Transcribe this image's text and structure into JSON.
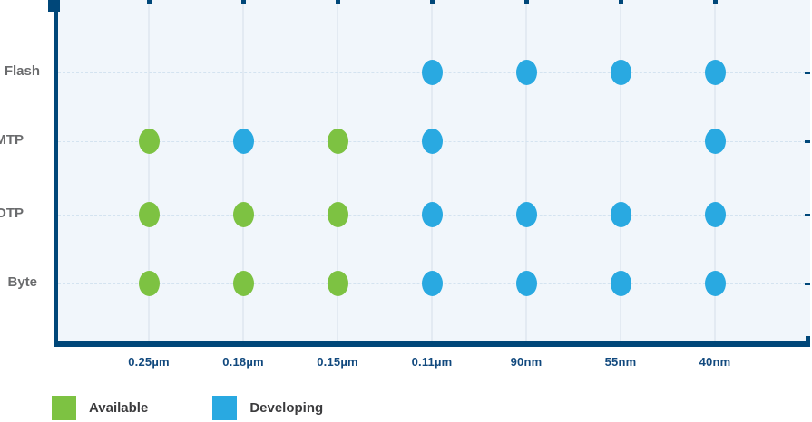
{
  "chart_data": {
    "type": "scatter",
    "title": "",
    "x_categories": [
      "0.25µm",
      "0.18µm",
      "0.15µm",
      "0.11µm",
      "90nm",
      "55nm",
      "40nm"
    ],
    "y_categories": [
      "Flash",
      "MTP",
      "OTP",
      "Byte"
    ],
    "legend": [
      {
        "label": "Available",
        "color": "#7DC242"
      },
      {
        "label": "Developing",
        "color": "#29A9E1"
      }
    ],
    "legend_position": "bottom-left",
    "grid": true,
    "points": [
      {
        "row": "Flash",
        "col": "0.11µm",
        "status": "Developing"
      },
      {
        "row": "Flash",
        "col": "90nm",
        "status": "Developing"
      },
      {
        "row": "Flash",
        "col": "55nm",
        "status": "Developing"
      },
      {
        "row": "Flash",
        "col": "40nm",
        "status": "Developing"
      },
      {
        "row": "MTP",
        "col": "0.25µm",
        "status": "Available"
      },
      {
        "row": "MTP",
        "col": "0.18µm",
        "status": "Developing"
      },
      {
        "row": "MTP",
        "col": "0.15µm",
        "status": "Available"
      },
      {
        "row": "MTP",
        "col": "0.11µm",
        "status": "Developing"
      },
      {
        "row": "MTP",
        "col": "40nm",
        "status": "Developing"
      },
      {
        "row": "OTP",
        "col": "0.25µm",
        "status": "Available"
      },
      {
        "row": "OTP",
        "col": "0.18µm",
        "status": "Available"
      },
      {
        "row": "OTP",
        "col": "0.15µm",
        "status": "Available"
      },
      {
        "row": "OTP",
        "col": "0.11µm",
        "status": "Developing"
      },
      {
        "row": "OTP",
        "col": "90nm",
        "status": "Developing"
      },
      {
        "row": "OTP",
        "col": "55nm",
        "status": "Developing"
      },
      {
        "row": "OTP",
        "col": "40nm",
        "status": "Developing"
      },
      {
        "row": "Byte",
        "col": "0.25µm",
        "status": "Available"
      },
      {
        "row": "Byte",
        "col": "0.18µm",
        "status": "Available"
      },
      {
        "row": "Byte",
        "col": "0.15µm",
        "status": "Available"
      },
      {
        "row": "Byte",
        "col": "0.11µm",
        "status": "Developing"
      },
      {
        "row": "Byte",
        "col": "90nm",
        "status": "Developing"
      },
      {
        "row": "Byte",
        "col": "55nm",
        "status": "Developing"
      },
      {
        "row": "Byte",
        "col": "40nm",
        "status": "Developing"
      }
    ],
    "status_colors": {
      "Available": "#7DC242",
      "Developing": "#29A9E1"
    },
    "axis_color": "#004779",
    "plot_background": "#F1F6FB"
  }
}
